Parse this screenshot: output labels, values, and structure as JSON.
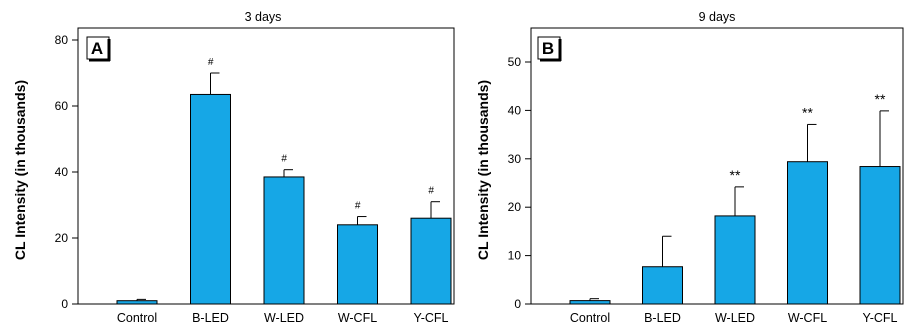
{
  "chart_data": [
    {
      "type": "bar",
      "panel_label": "A",
      "title": "3 days",
      "ylabel": "CL Intensity (in thousands)",
      "ylim": [
        0,
        80
      ],
      "yticks": [
        "0",
        "20",
        "40",
        "60",
        "80"
      ],
      "categories": [
        "Control",
        "B-LED",
        "W-LED",
        "W-CFL",
        "Y-CFL"
      ],
      "values": [
        1,
        63.5,
        38.5,
        24,
        26
      ],
      "errors": [
        0.4,
        6.5,
        2.2,
        2.5,
        5
      ],
      "annotations": [
        "",
        "#",
        "#",
        "#",
        "#"
      ],
      "bar_color": "#16a7e6"
    },
    {
      "type": "bar",
      "panel_label": "B",
      "title": "9 days",
      "ylabel": "CL Intensity (in thousands)",
      "ylim": [
        0,
        55
      ],
      "yticks": [
        "0",
        "10",
        "20",
        "30",
        "40",
        "50"
      ],
      "categories": [
        "Control",
        "B-LED",
        "W-LED",
        "W-CFL",
        "Y-CFL"
      ],
      "values": [
        0.7,
        7.7,
        18.2,
        29.4,
        28.4
      ],
      "errors": [
        0.4,
        6.3,
        6,
        7.7,
        11.5
      ],
      "annotations": [
        "",
        "",
        "**",
        "**",
        "**"
      ],
      "bar_color": "#16a7e6"
    }
  ]
}
